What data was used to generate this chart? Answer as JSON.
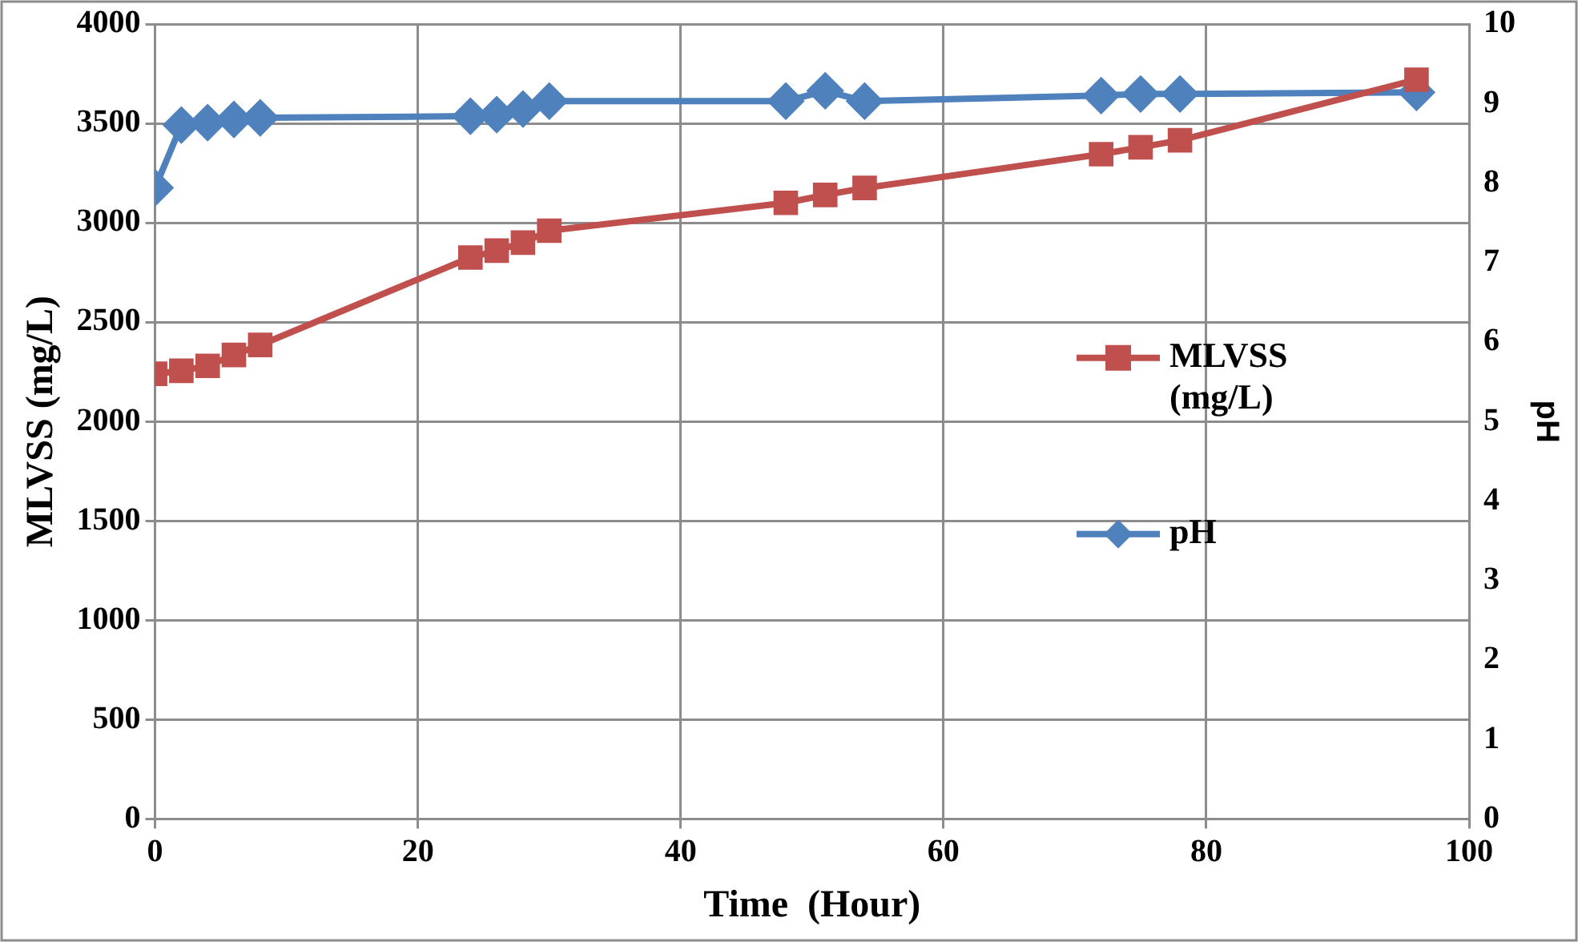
{
  "chart_data": {
    "type": "line",
    "xlabel": "Time  (Hour)",
    "ylabel": "MLVSS (mg/L)",
    "y2label": "pH",
    "x": [
      0,
      2,
      4,
      6,
      8,
      24,
      26,
      28,
      30,
      48,
      51,
      54,
      72,
      75,
      78,
      96
    ],
    "series": [
      {
        "name": "MLVSS (mg/L)",
        "color": "#c0504d",
        "marker": "square",
        "values": [
          2240,
          2255,
          2280,
          2335,
          2385,
          2825,
          2860,
          2900,
          2960,
          3100,
          3140,
          3175,
          3345,
          3380,
          3415,
          3720
        ]
      },
      {
        "name": "pH",
        "color": "#4f81bd",
        "marker": "diamond",
        "axis": "y2",
        "values": [
          7.94,
          8.73,
          8.76,
          8.8,
          8.82,
          8.84,
          8.86,
          8.93,
          9.03,
          9.03,
          9.16,
          9.03,
          9.1,
          9.12,
          9.12,
          9.14
        ]
      }
    ],
    "xlim": [
      0,
      100
    ],
    "xticks": [
      0,
      20,
      40,
      60,
      80,
      100
    ],
    "ylim": [
      0,
      4000
    ],
    "yticks": [
      0,
      500,
      1000,
      1500,
      2000,
      2500,
      3000,
      3500,
      4000
    ],
    "y2lim": [
      0,
      10
    ],
    "y2ticks": [
      0,
      1,
      2,
      3,
      4,
      5,
      6,
      7,
      8,
      9,
      10
    ],
    "grid": true,
    "legend": "right",
    "line_style": "solid"
  }
}
